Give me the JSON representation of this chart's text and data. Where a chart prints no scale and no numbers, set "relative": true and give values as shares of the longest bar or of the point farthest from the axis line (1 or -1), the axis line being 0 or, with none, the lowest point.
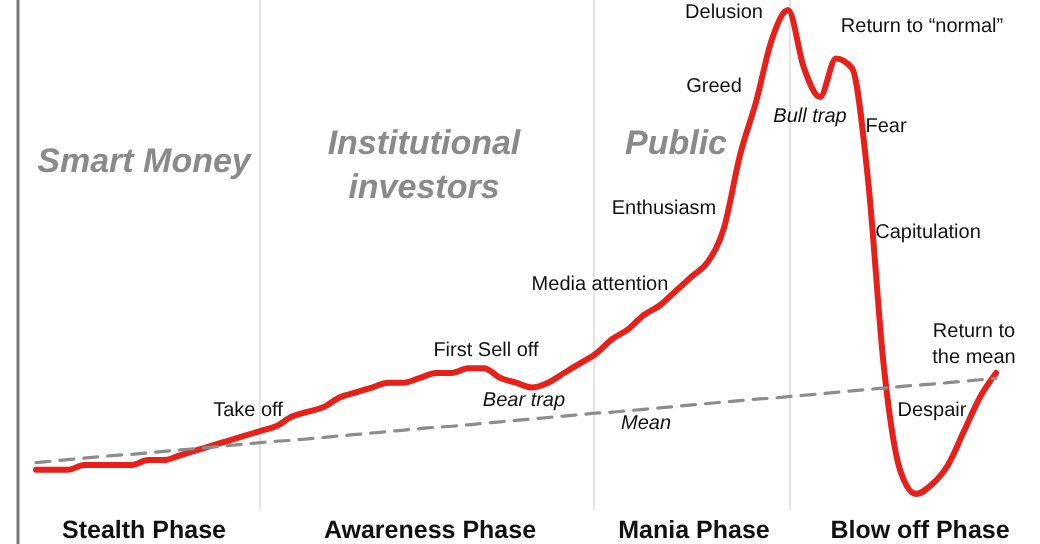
{
  "chart_data": {
    "type": "line",
    "relative": true,
    "grid": "x",
    "categories": [
      null,
      null,
      null,
      null,
      null,
      null,
      null,
      null,
      null,
      null,
      null,
      null,
      null,
      null,
      null,
      null,
      null,
      null,
      null,
      null,
      null,
      null,
      null,
      null,
      null,
      null,
      null,
      null,
      null,
      null,
      null,
      null,
      null,
      null,
      null,
      null,
      null,
      null,
      null,
      null,
      null,
      null,
      null,
      null,
      null,
      null,
      null,
      null,
      null,
      null,
      null,
      null,
      null,
      null,
      null,
      null,
      null,
      null,
      null,
      null,
      null
    ],
    "series": [
      {
        "color": "#e8201a",
        "values": [
          0.05,
          0.05,
          0.05,
          0.06,
          0.06,
          0.06,
          0.06,
          0.07,
          0.07,
          0.08,
          0.09,
          0.1,
          0.11,
          0.12,
          0.13,
          0.14,
          0.16,
          0.17,
          0.18,
          0.2,
          0.21,
          0.22,
          0.23,
          0.23,
          0.24,
          0.25,
          0.25,
          0.26,
          0.26,
          0.24,
          0.23,
          0.22,
          0.23,
          0.25,
          0.27,
          0.29,
          0.32,
          0.34,
          0.37,
          0.39,
          0.42,
          0.45,
          0.48,
          0.55,
          0.7,
          0.81,
          0.94,
          1.0,
          0.88,
          0.82,
          0.9,
          0.88,
          0.65,
          0.26,
          0.05,
          0,
          0.02,
          0.06,
          0.13,
          0.2,
          0.25
        ]
      },
      {
        "name": "Mean",
        "color": "#8c8c8c",
        "line_style": "dashed",
        "values": [
          0.065,
          0.068,
          0.071,
          0.074,
          0.077,
          0.08,
          0.082,
          0.085,
          0.088,
          0.091,
          0.094,
          0.097,
          0.1,
          0.103,
          0.106,
          0.109,
          0.111,
          0.114,
          0.117,
          0.12,
          0.123,
          0.126,
          0.129,
          0.132,
          0.135,
          0.138,
          0.14,
          0.143,
          0.146,
          0.149,
          0.152,
          0.155,
          0.158,
          0.161,
          0.164,
          0.167,
          0.169,
          0.172,
          0.175,
          0.178,
          0.181,
          0.184,
          0.187,
          0.19,
          0.193,
          0.196,
          0.198,
          0.201,
          0.204,
          0.207,
          0.21,
          0.213,
          0.216,
          0.219,
          0.222,
          0.225,
          0.227,
          0.23,
          0.233,
          0.236,
          0.239
        ]
      }
    ],
    "annotations": [
      "Smart Money",
      "Institutional investors",
      "Public",
      "Stealth Phase",
      "Awareness Phase",
      "Mania Phase",
      "Blow off Phase",
      "Take off",
      "First Sell off",
      "Bear trap",
      "Media attention",
      "Enthusiasm",
      "Greed",
      "Delusion",
      "Bull trap",
      "Return to “normal”",
      "Fear",
      "Capitulation",
      "Return to the mean",
      "Despair"
    ]
  }
}
